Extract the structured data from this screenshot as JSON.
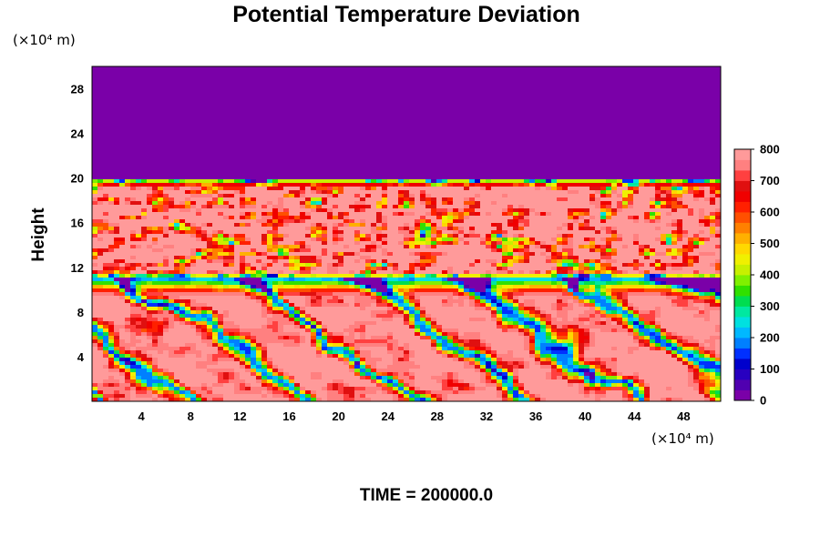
{
  "chart_data": {
    "type": "heatmap",
    "title": "Potential Temperature Deviation",
    "ylabel": "Height",
    "xlabel": "",
    "x_unit": "(×10⁴ m)",
    "y_unit": "(×10⁴ m)",
    "xlim": [
      0,
      51
    ],
    "ylim": [
      0,
      30
    ],
    "x_ticks": [
      4,
      8,
      12,
      16,
      20,
      24,
      28,
      32,
      36,
      40,
      44,
      48
    ],
    "y_ticks": [
      4,
      8,
      12,
      16,
      20,
      24,
      28
    ],
    "colorbar": {
      "min": 0,
      "max": 800,
      "tick_values": [
        0,
        100,
        200,
        300,
        400,
        500,
        600,
        700,
        800
      ],
      "colors": [
        "#7a00a8",
        "#5000b0",
        "#2800c0",
        "#0000cc",
        "#0030ff",
        "#0080ff",
        "#00b8ff",
        "#00e0e0",
        "#00e8a0",
        "#00dd50",
        "#30e000",
        "#80f000",
        "#c8f000",
        "#f0f000",
        "#ffd800",
        "#ffb000",
        "#ff8000",
        "#ff5000",
        "#ff2000",
        "#f00000",
        "#e01010",
        "#ff4040",
        "#ff8080",
        "#ff9a9a"
      ]
    },
    "regions": [
      {
        "y_range": [
          20,
          30
        ],
        "value_range": [
          0,
          0
        ],
        "description_value": 0
      },
      {
        "y_range": [
          11,
          20
        ],
        "value_range": [
          0,
          800
        ]
      },
      {
        "y_range": [
          0,
          11
        ],
        "value_range": [
          0,
          800
        ]
      }
    ]
  },
  "footer": {
    "time_label": "TIME = 200000.0"
  }
}
